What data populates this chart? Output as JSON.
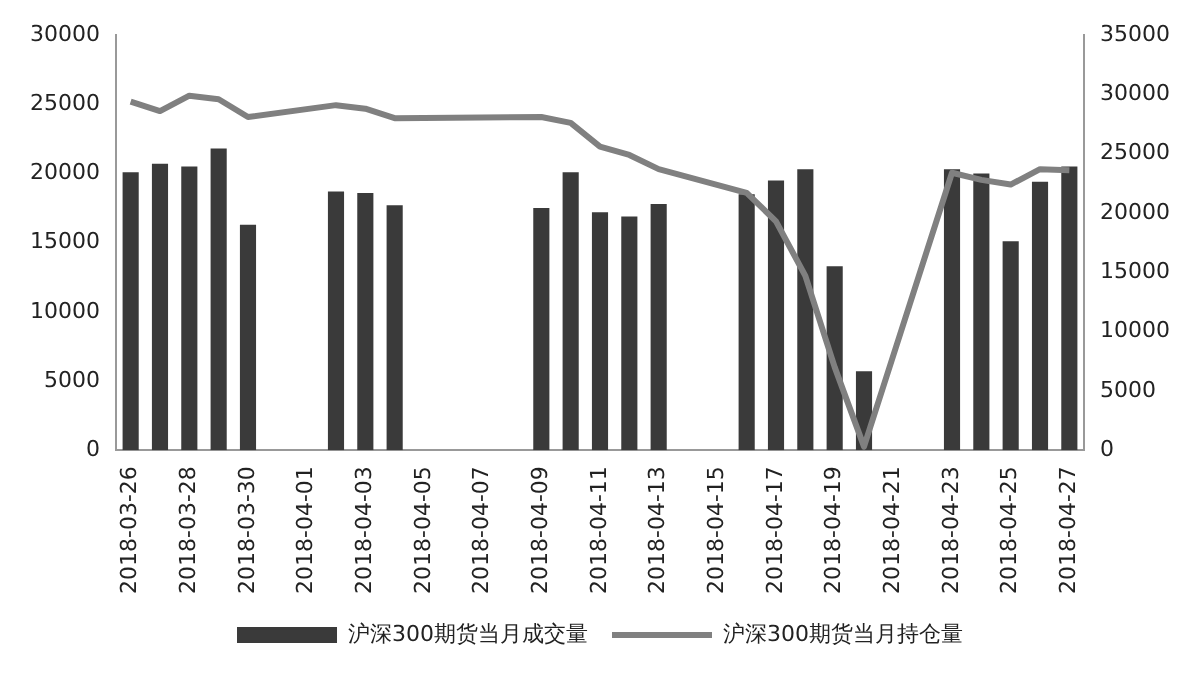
{
  "chart_data": {
    "type": "bar",
    "categories": [
      "2018-03-26",
      null,
      "2018-03-28",
      null,
      "2018-03-30",
      null,
      "2018-04-01",
      null,
      "2018-04-03",
      null,
      "2018-04-05",
      null,
      "2018-04-07",
      null,
      "2018-04-09",
      null,
      "2018-04-11",
      null,
      "2018-04-13",
      null,
      "2018-04-15",
      null,
      "2018-04-17",
      null,
      "2018-04-19",
      null,
      "2018-04-21",
      null,
      "2018-04-23",
      null,
      "2018-04-25",
      null,
      "2018-04-27"
    ],
    "series": [
      {
        "name": "沪深300期货当月成交量",
        "color": "#3a3a3a",
        "values": [
          20100,
          20700,
          20500,
          21800,
          16300,
          null,
          null,
          18700,
          18600,
          17700,
          null,
          null,
          null,
          null,
          17500,
          20100,
          17200,
          16900,
          17800,
          null,
          null,
          18500,
          19500,
          20300,
          13300,
          5700,
          null,
          null,
          20300,
          20000,
          15100,
          19400,
          20500
        ]
      },
      {
        "name": "沪深300期货当月持仓量",
        "type": "line",
        "axis": "y2",
        "color": "#808080",
        "values": [
          29400,
          28600,
          29900,
          29600,
          28100,
          null,
          null,
          29100,
          28800,
          28000,
          null,
          null,
          null,
          null,
          28100,
          27600,
          25600,
          24900,
          23700,
          null,
          null,
          21700,
          19300,
          14700,
          7000,
          300,
          null,
          null,
          23400,
          22800,
          22400,
          23700,
          23600
        ]
      }
    ],
    "ylim": [
      0,
      30000
    ],
    "yticks": [
      0,
      5000,
      10000,
      15000,
      20000,
      25000,
      30000
    ],
    "y2lim": [
      0,
      35000
    ],
    "y2ticks": [
      0,
      5000,
      10000,
      15000,
      20000,
      25000,
      30000,
      35000
    ],
    "grid": false,
    "legend": "bottom",
    "marker": "none"
  }
}
